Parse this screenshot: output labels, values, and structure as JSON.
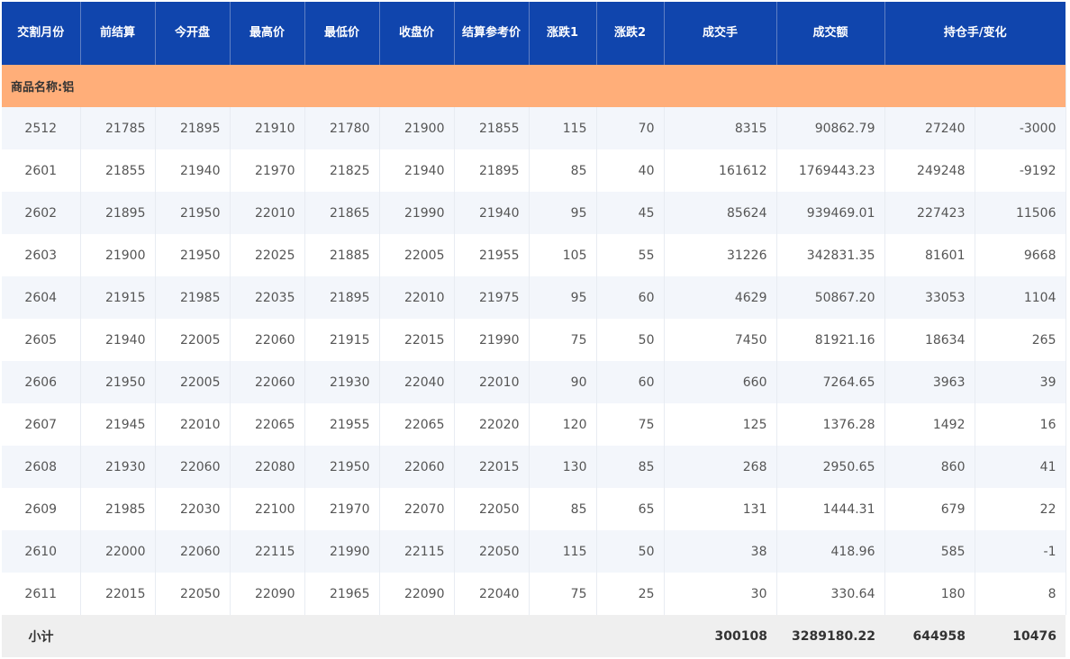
{
  "headers": [
    "交割月份",
    "前结算",
    "今开盘",
    "最高价",
    "最低价",
    "收盘价",
    "结算参考价",
    "涨跌1",
    "涨跌2",
    "成交手",
    "成交额",
    "持仓手/变化"
  ],
  "group": "商品名称:铝",
  "rows": [
    [
      "2512",
      "21785",
      "21895",
      "21910",
      "21780",
      "21900",
      "21855",
      "115",
      "70",
      "8315",
      "90862.79",
      "27240",
      "-3000"
    ],
    [
      "2601",
      "21855",
      "21940",
      "21970",
      "21825",
      "21940",
      "21895",
      "85",
      "40",
      "161612",
      "1769443.23",
      "249248",
      "-9192"
    ],
    [
      "2602",
      "21895",
      "21950",
      "22010",
      "21865",
      "21990",
      "21940",
      "95",
      "45",
      "85624",
      "939469.01",
      "227423",
      "11506"
    ],
    [
      "2603",
      "21900",
      "21950",
      "22025",
      "21885",
      "22005",
      "21955",
      "105",
      "55",
      "31226",
      "342831.35",
      "81601",
      "9668"
    ],
    [
      "2604",
      "21915",
      "21985",
      "22035",
      "21895",
      "22010",
      "21975",
      "95",
      "60",
      "4629",
      "50867.20",
      "33053",
      "1104"
    ],
    [
      "2605",
      "21940",
      "22005",
      "22060",
      "21915",
      "22015",
      "21990",
      "75",
      "50",
      "7450",
      "81921.16",
      "18634",
      "265"
    ],
    [
      "2606",
      "21950",
      "22005",
      "22060",
      "21930",
      "22040",
      "22010",
      "90",
      "60",
      "660",
      "7264.65",
      "3963",
      "39"
    ],
    [
      "2607",
      "21945",
      "22010",
      "22065",
      "21955",
      "22065",
      "22020",
      "120",
      "75",
      "125",
      "1376.28",
      "1492",
      "16"
    ],
    [
      "2608",
      "21930",
      "22060",
      "22080",
      "21950",
      "22060",
      "22015",
      "130",
      "85",
      "268",
      "2950.65",
      "860",
      "41"
    ],
    [
      "2609",
      "21985",
      "22030",
      "22100",
      "21970",
      "22070",
      "22050",
      "85",
      "65",
      "131",
      "1444.31",
      "679",
      "22"
    ],
    [
      "2610",
      "22000",
      "22060",
      "22115",
      "21990",
      "22115",
      "22050",
      "115",
      "50",
      "38",
      "418.96",
      "585",
      "-1"
    ],
    [
      "2611",
      "22015",
      "22050",
      "22090",
      "21965",
      "22090",
      "22040",
      "75",
      "25",
      "30",
      "330.64",
      "180",
      "8"
    ]
  ],
  "total": {
    "label": "小计",
    "volume": "300108",
    "turnover": "3289180.22",
    "open_interest": "644958",
    "change": "10476"
  }
}
